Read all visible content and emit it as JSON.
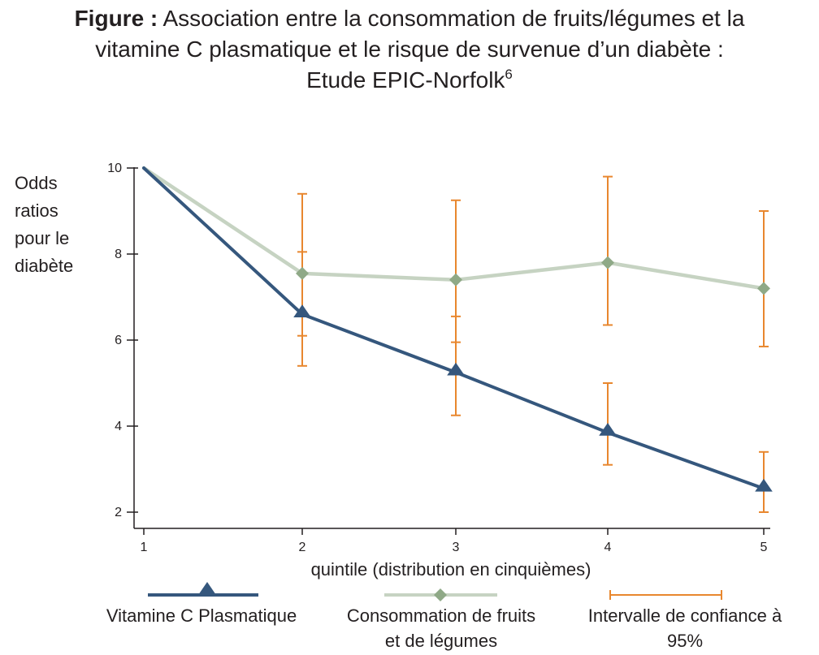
{
  "title": {
    "prefix": "Figure :",
    "line1": "Association entre la consommation de fruits/légumes et la",
    "line2": "vitamine C plasmatique et le risque de survenue d’un diabète :",
    "line3": "Etude EPIC-Norfolk",
    "superscript": "6"
  },
  "chart_data": {
    "type": "line",
    "x": [
      1,
      2,
      3,
      4,
      5
    ],
    "xlabel": "quintile (distribution en cinquièmes)",
    "ylabel_lines": [
      "Odds",
      "ratios",
      "pour le",
      "diabète"
    ],
    "xticks": [
      "1",
      "2",
      "3",
      "4",
      "5"
    ],
    "yticks": [
      "2",
      "4",
      "6",
      "8",
      "10"
    ],
    "ylim": [
      2,
      10
    ],
    "series": [
      {
        "name": "Vitamine C Plasmatique",
        "color": "#35577d",
        "marker": "triangle",
        "values": [
          10,
          6.6,
          5.25,
          3.85,
          2.55
        ],
        "ci": [
          null,
          [
            6.1,
            8.05
          ],
          [
            4.25,
            6.55
          ],
          [
            3.1,
            5.0
          ],
          [
            2.0,
            3.4
          ]
        ]
      },
      {
        "name": "Consommation de fruits et de légumes",
        "color": "#c6d3c2",
        "marker_color": "#8fa987",
        "marker": "diamond",
        "values": [
          10,
          7.55,
          7.4,
          7.8,
          7.2
        ],
        "ci": [
          null,
          [
            5.4,
            9.4
          ],
          [
            5.95,
            9.25
          ],
          [
            6.35,
            9.8
          ],
          [
            5.85,
            9.0
          ]
        ]
      }
    ],
    "ci_color": "#e8872e",
    "legend": {
      "placement": "bottom",
      "items": [
        {
          "lines": [
            "Vitamine C Plasmatique"
          ]
        },
        {
          "lines": [
            "Consommation de fruits",
            "et de légumes"
          ]
        },
        {
          "lines": [
            "Intervalle de confiance à",
            "95%"
          ]
        }
      ]
    }
  }
}
